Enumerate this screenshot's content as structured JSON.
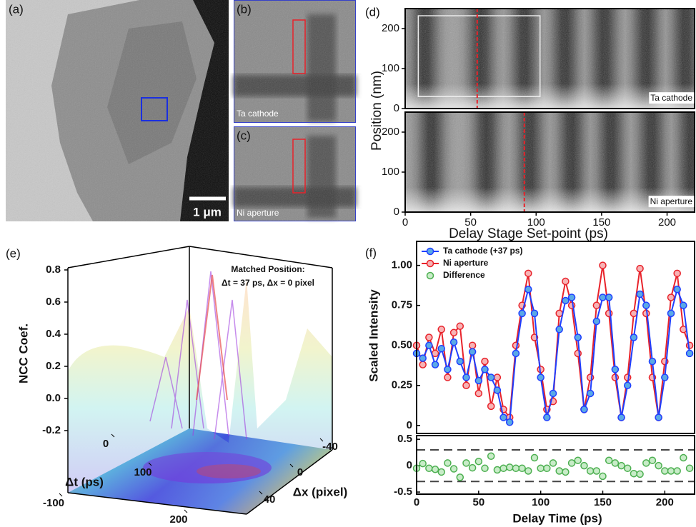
{
  "image_panels": [
    {
      "label": "(a)",
      "scale_bar": "1 μm"
    },
    {
      "label": "(b)",
      "annotation": "Ta cathode"
    },
    {
      "label": "(c)",
      "annotation": "Ni aperture"
    }
  ],
  "chart_data": [
    {
      "type": "heatmap",
      "label": "(d)",
      "annotation": "Ta cathode",
      "ylabel": "Position (nm)",
      "xlim": [
        0,
        221
      ],
      "ylim": [
        0,
        250
      ],
      "yticks": [
        0,
        100,
        200
      ],
      "marker_x": 55,
      "marker_color": "#e8222a"
    },
    {
      "type": "heatmap",
      "annotation": "Ni aperture",
      "xlabel": "Delay Stage Set-point (ps)",
      "xlim": [
        0,
        221
      ],
      "ylim": [
        0,
        250
      ],
      "xticks": [
        0,
        50,
        100,
        150,
        200
      ],
      "yticks": [
        0,
        100,
        200
      ],
      "marker_x": 91,
      "marker_color": "#e8222a"
    },
    {
      "type": "surface3d",
      "label": "(e)",
      "zlabel": "NCC Coef.",
      "xlabel": "Δt (ps)",
      "ylabel": "Δx (pixel)",
      "annotation": [
        "Matched Position:",
        "Δt = 37 ps, Δx = 0 pixel"
      ],
      "zlim": [
        -0.2,
        0.8
      ],
      "zticks": [
        0.8,
        0.6,
        0.4,
        0.2,
        {
          "value": 0,
          "label": "0.0"
        },
        -0.2
      ],
      "xticks": [
        -100,
        0,
        100,
        200
      ],
      "yticks": [
        -40,
        0,
        40
      ]
    },
    {
      "type": "line_scatter",
      "label": "(f)",
      "ylabel": "Scaled Intensity",
      "xlabel": "Delay Time (ps)",
      "legend": "upper left",
      "xlim": [
        0,
        224
      ],
      "ylim": [
        -0.05,
        1.15
      ],
      "yticks": [
        0,
        0.25,
        {
          "value": 0.5,
          "label": "0.50"
        },
        0.75,
        {
          "value": 1,
          "label": "1.00"
        }
      ],
      "xticks": [
        0,
        50,
        100,
        150,
        200
      ],
      "y2lim": [
        -0.54,
        0.57
      ],
      "y2ticks": [
        -0.5,
        0,
        0.5
      ],
      "y2_reference_lines": [
        -0.3,
        0.3
      ],
      "x": [
        0,
        5,
        10,
        15,
        20,
        25,
        30,
        35,
        40,
        45,
        50,
        55,
        60,
        65,
        70,
        75,
        80,
        85,
        90,
        95,
        100,
        105,
        110,
        115,
        120,
        125,
        130,
        135,
        140,
        145,
        150,
        155,
        160,
        165,
        170,
        175,
        180,
        185,
        190,
        195,
        200,
        205,
        210,
        215,
        220
      ],
      "series": [
        {
          "name": "Ta cathode (+37 ps)",
          "color": "#1f3fff",
          "marker_color": "#5aa9e6",
          "line": true,
          "values": [
            0.45,
            0.42,
            0.5,
            0.38,
            0.48,
            0.35,
            0.52,
            0.4,
            0.3,
            0.46,
            0.28,
            0.35,
            0.3,
            0.22,
            0.05,
            0.02,
            0.45,
            0.7,
            0.85,
            0.7,
            0.3,
            0.05,
            0.2,
            0.6,
            0.78,
            0.8,
            0.55,
            0.1,
            0.2,
            0.65,
            0.8,
            0.8,
            0.35,
            0.05,
            0.25,
            0.55,
            0.82,
            0.75,
            0.4,
            0.05,
            0.3,
            0.7,
            0.85,
            0.75,
            0.45
          ]
        },
        {
          "name": "Ni aperture",
          "color": "#e8222a",
          "marker_color": "#f7b3b5",
          "line": true,
          "values": [
            0.5,
            0.38,
            0.55,
            0.45,
            0.6,
            0.3,
            0.58,
            0.62,
            0.25,
            0.5,
            0.2,
            0.4,
            0.12,
            0.3,
            0.1,
            0.05,
            0.5,
            0.75,
            0.95,
            0.55,
            0.35,
            0.1,
            0.15,
            0.7,
            0.9,
            0.75,
            0.45,
            0.1,
            0.3,
            0.75,
            1.0,
            0.7,
            0.3,
            0.05,
            0.3,
            0.7,
            0.98,
            0.7,
            0.3,
            0.05,
            0.4,
            0.8,
            0.95,
            0.6,
            0.5
          ]
        },
        {
          "name": "Difference",
          "color": "#4caf50",
          "marker_color": "#c8ecc8",
          "line": false,
          "axis": "y2",
          "values": [
            -0.05,
            0.04,
            -0.05,
            -0.07,
            -0.12,
            0.05,
            -0.06,
            -0.22,
            0.05,
            -0.04,
            0.08,
            -0.05,
            0.18,
            -0.08,
            -0.05,
            -0.03,
            -0.05,
            -0.05,
            -0.1,
            0.15,
            -0.05,
            -0.05,
            0.05,
            -0.1,
            -0.12,
            0.05,
            0.1,
            0,
            -0.1,
            -0.1,
            -0.2,
            0.1,
            0.05,
            0,
            -0.05,
            -0.15,
            -0.16,
            0.05,
            0.1,
            0,
            -0.1,
            -0.1,
            -0.1,
            0.15,
            -0.05
          ]
        }
      ]
    }
  ]
}
